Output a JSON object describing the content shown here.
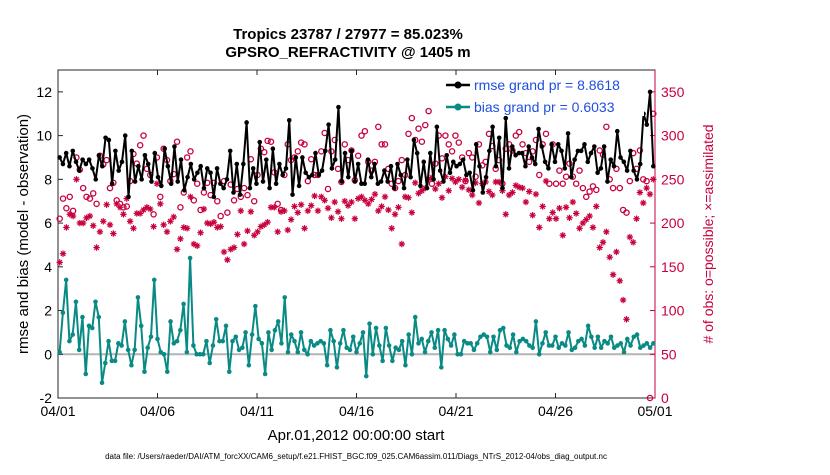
{
  "chart_data": {
    "type": "line",
    "title": "Tropics 23787 / 27977 = 85.023%",
    "subtitle": "GPSRO_REFRACTIVITY @ 1405 m",
    "xlabel": "Apr.01,2012 00:00:00 start",
    "ylabel": "rmse and bias (model - observation)",
    "y2label": "# of obs: o=possible; ×=assimilated",
    "xlim": [
      0,
      30
    ],
    "ylim": [
      -2,
      13
    ],
    "y2lim": [
      0,
      375
    ],
    "x_ticks": [
      {
        "value": 0,
        "label": "04/01"
      },
      {
        "value": 5,
        "label": "04/06"
      },
      {
        "value": 10,
        "label": "04/11"
      },
      {
        "value": 15,
        "label": "04/16"
      },
      {
        "value": 20,
        "label": "04/21"
      },
      {
        "value": 25,
        "label": "04/26"
      },
      {
        "value": 30,
        "label": "05/01"
      }
    ],
    "y_ticks": [
      -2,
      0,
      2,
      4,
      6,
      8,
      10,
      12
    ],
    "y2_ticks": [
      0,
      50,
      100,
      150,
      200,
      250,
      300,
      350
    ],
    "legend": [
      {
        "name": "rmse grand pr = 8.8618",
        "color": "#000000"
      },
      {
        "name": "bias grand pr = 0.6033",
        "color": "#0a8a84"
      }
    ],
    "series": [
      {
        "name": "rmse",
        "color": "#000000",
        "axis": "left",
        "values": [
          9.0,
          8.7,
          9.2,
          8.6,
          9.3,
          8.8,
          8.4,
          8.9,
          8.7,
          8.9,
          8.5,
          8.0,
          9.1,
          8.6,
          9.9,
          9.8,
          7.8,
          9.3,
          8.4,
          8.8,
          10.0,
          7.2,
          9.3,
          7.9,
          8.6,
          8.0,
          9.1,
          8.7,
          7.9,
          9.2,
          8.1,
          7.7,
          9.4,
          8.6,
          7.8,
          9.5,
          7.9,
          8.9,
          7.5,
          8.1,
          8.7,
          8.0,
          8.3,
          8.6,
          7.6,
          8.5,
          8.3,
          7.2,
          8.5,
          7.8,
          7.6,
          8.0,
          9.3,
          7.4,
          8.7,
          7.3,
          8.7,
          10.6,
          7.6,
          8.5,
          7.8,
          9.7,
          7.9,
          8.9,
          7.6,
          9.4,
          7.8,
          8.7,
          8.2,
          8.5,
          10.7,
          7.3,
          9.0,
          7.7,
          9.0,
          8.3,
          8.1,
          8.2,
          9.2,
          8.2,
          8.4,
          9.3,
          10.5,
          8.5,
          8.9,
          11.3,
          7.9,
          9.2,
          8.1,
          9.3,
          7.9,
          8.7,
          7.8,
          7.8,
          8.9,
          8.1,
          8.7,
          7.8,
          7.9,
          8.4,
          7.9,
          8.6,
          7.6,
          8.7,
          8.2,
          7.6,
          8.9,
          8.1,
          9.8,
          9.2,
          7.7,
          8.8,
          7.6,
          9.2,
          8.0,
          10.4,
          8.4,
          7.9,
          9.1,
          8.3,
          8.8,
          8.6,
          8.7,
          8.9,
          8.2,
          8.3,
          7.5,
          9.6,
          8.6,
          7.4,
          8.1,
          9.3,
          10.4,
          8.6,
          9.9,
          7.6,
          10.8,
          8.5,
          9.5,
          9.1,
          9.2,
          9.2,
          8.6,
          9.5,
          9.0,
          8.7,
          10.3,
          9.5,
          8.8,
          8.5,
          9.6,
          8.8,
          9.6,
          9.3,
          8.5,
          10.1,
          8.1,
          8.9,
          9.3,
          9.3,
          9.6,
          8.8,
          9.2,
          9.5,
          8.3,
          8.5,
          9.5,
          7.9,
          8.9,
          8.6,
          10.2,
          9.0,
          8.8,
          8.4,
          9.3,
          8.4,
          8.0,
          8.7,
          11.0,
          10.5,
          12.0,
          8.6
        ]
      },
      {
        "name": "bias",
        "color": "#0a8a84",
        "axis": "left",
        "values": [
          0.1,
          1.9,
          3.4,
          0.6,
          0.9,
          2.4,
          0.2,
          1.7,
          -0.9,
          1.3,
          1.2,
          2.4,
          1.7,
          -1.3,
          -0.4,
          0.6,
          -0.3,
          -0.3,
          0.5,
          0.4,
          1.5,
          0.2,
          -0.5,
          0.2,
          2.6,
          1.3,
          -0.8,
          0.3,
          0.8,
          3.4,
          0.7,
          0.1,
          0.0,
          -0.8,
          1.5,
          0.5,
          0.6,
          1.1,
          2.3,
          0.1,
          4.4,
          0.4,
          0.0,
          0.0,
          0.0,
          0.6,
          -0.4,
          0.4,
          1.6,
          0.6,
          0.6,
          1.3,
          -0.8,
          0.6,
          0.8,
          0.2,
          0.3,
          1.0,
          -0.5,
          0.9,
          2.2,
          0.7,
          0.5,
          -0.9,
          1.0,
          0.2,
          1.1,
          1.5,
          0.5,
          2.6,
          0.1,
          0.9,
          0.6,
          0.1,
          1.0,
          0.2,
          0.0,
          0.6,
          0.4,
          0.5,
          0.6,
          0.5,
          -0.5,
          1.1,
          0.6,
          -0.6,
          0.5,
          1.1,
          0.3,
          0.2,
          0.8,
          0.1,
          0.5,
          1.0,
          -1.0,
          1.4,
          0.0,
          1.2,
          0.4,
          -0.3,
          1.2,
          0.4,
          -0.3,
          0.3,
          0.2,
          0.6,
          -0.5,
          0.9,
          0.0,
          1.7,
          0.5,
          0.7,
          0.1,
          0.6,
          1.0,
          0.3,
          1.1,
          -0.6,
          1.1,
          0.7,
          0.4,
          0.9,
          0.0,
          0.0,
          0.6,
          0.5,
          0.5,
          0.2,
          0.5,
          0.8,
          0.9,
          0.8,
          0.1,
          0.8,
          0.2,
          1.1,
          1.2,
          0.4,
          0.3,
          0.9,
          0.1,
          0.6,
          0.7,
          0.6,
          0.4,
          0.3,
          1.5,
          0.0,
          0.5,
          1.0,
          0.4,
          0.4,
          0.8,
          0.3,
          0.5,
          0.4,
          1.0,
          0.2,
          0.3,
          0.6,
          0.7,
          0.4,
          1.3,
          0.8,
          0.3,
          0.8,
          0.3,
          0.6,
          0.5,
          0.8,
          0.3,
          0.4,
          0.5,
          0.1,
          0.7,
          0.4,
          0.8,
          0.9,
          0.3,
          0.4,
          0.5,
          0.3,
          0.5
        ]
      },
      {
        "name": "possible",
        "marker": "circle",
        "color": "#c8003c",
        "axis": "right",
        "values": [
          205,
          228,
          217,
          230,
          214,
          275,
          261,
          240,
          230,
          228,
          234,
          222,
          277,
          267,
          272,
          240,
          246,
          226,
          222,
          218,
          219,
          248,
          279,
          268,
          289,
          300,
          262,
          255,
          210,
          275,
          230,
          285,
          272,
          248,
          256,
          293,
          218,
          235,
          275,
          282,
          226,
          245,
          215,
          235,
          246,
          232,
          246,
          225,
          208,
          248,
          212,
          244,
          226,
          239,
          230,
          240,
          232,
          273,
          225,
          255,
          285,
          281,
          294,
          293,
          258,
          222,
          215,
          255,
          290,
          272,
          275,
          282,
          292,
          290,
          248,
          273,
          255,
          255,
          282,
          303,
          239,
          282,
          295,
          262,
          247,
          290,
          272,
          283,
          249,
          277,
          300,
          305,
          270,
          260,
          270,
          310,
          290,
          290,
          262,
          245,
          240,
          248,
          272,
          255,
          302,
          320,
          295,
          308,
          293,
          312,
          328,
          245,
          268,
          300,
          274,
          300,
          290,
          282,
          300,
          292,
          275,
          248,
          280,
          275,
          253,
          290,
          266,
          270,
          302,
          288,
          262,
          272,
          245,
          285,
          290,
          283,
          300,
          304,
          290,
          280,
          270,
          282,
          295,
          255,
          290,
          302,
          245,
          290,
          245,
          260,
          245,
          253,
          268,
          253,
          245,
          260,
          240,
          230,
          236,
          242,
          238,
          283,
          278,
          310,
          250,
          240,
          262,
          240,
          215,
          212,
          248,
          280,
          262,
          283,
          250,
          248,
          0,
          325
        ]
      },
      {
        "name": "assimilated",
        "marker": "asterisk",
        "color": "#c8003c",
        "axis": "right",
        "values": [
          155,
          165,
          195,
          210,
          208,
          250,
          200,
          200,
          206,
          208,
          197,
          172,
          190,
          202,
          221,
          198,
          188,
          222,
          218,
          210,
          228,
          202,
          194,
          211,
          211,
          215,
          218,
          216,
          196,
          245,
          222,
          198,
          190,
          202,
          207,
          170,
          182,
          195,
          194,
          230,
          176,
          174,
          189,
          216,
          200,
          199,
          201,
          195,
          196,
          167,
          158,
          170,
          172,
          187,
          214,
          176,
          191,
          213,
          186,
          190,
          196,
          198,
          201,
          218,
          218,
          190,
          213,
          214,
          192,
          204,
          219,
          212,
          221,
          194,
          214,
          220,
          231,
          214,
          230,
          226,
          217,
          206,
          224,
          213,
          205,
          225,
          220,
          224,
          205,
          228,
          230,
          226,
          222,
          227,
          233,
          214,
          219,
          230,
          215,
          194,
          210,
          218,
          176,
          230,
          229,
          212,
          246,
          234,
          237,
          240,
          250,
          252,
          239,
          245,
          229,
          253,
          237,
          251,
          247,
          250,
          241,
          249,
          238,
          232,
          246,
          223,
          245,
          247,
          236,
          232,
          247,
          247,
          237,
          210,
          232,
          235,
          243,
          241,
          240,
          224,
          236,
          209,
          233,
          195,
          219,
          248,
          205,
          212,
          205,
          217,
          186,
          218,
          206,
          224,
          211,
          194,
          200,
          204,
          208,
          195,
          219,
          172,
          178,
          190,
          161,
          141,
          167,
          134,
          112,
          90,
          184,
          178,
          205,
          235,
          223,
          240,
          233,
          250
        ]
      }
    ],
    "footnote": "data file: /Users/raeder/DAI/ATM_forcXX/CAM6_setup/f.e21.FHIST_BGC.f09_025.CAM6assim.011/Diags_NTrS_2012-04/obs_diag_output.nc"
  }
}
